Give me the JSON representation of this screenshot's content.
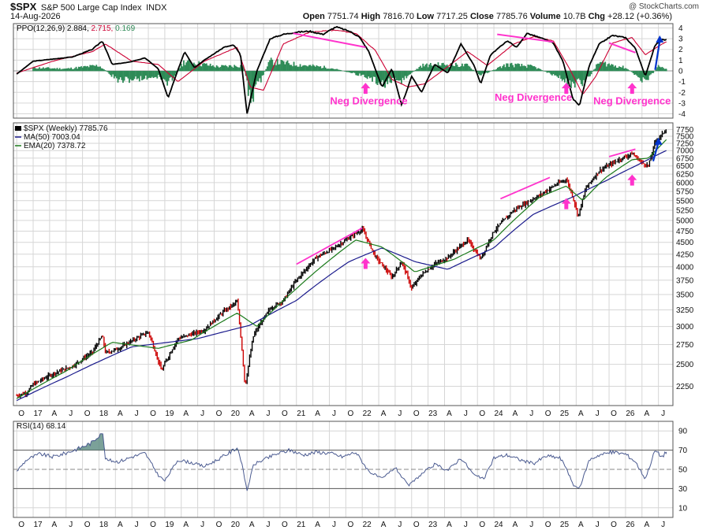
{
  "header": {
    "symbol": "$SPX",
    "description": "S&P 500 Large Cap Index",
    "exchange": "INDX",
    "date": "14-Aug-2026",
    "open_label": "Open",
    "open": "7751.74",
    "high_label": "High",
    "high": "7816.70",
    "low_label": "Low",
    "low": "7717.25",
    "close_label": "Close",
    "close": "7785.76",
    "volume_label": "Volume",
    "volume": "10.7B",
    "chg_label": "Chg",
    "chg": "+28.12 (+0.36%)",
    "brand": "@ StockCharts.com"
  },
  "colors": {
    "ppo_line": "#000000",
    "ppo_signal": "#cc0033",
    "ppo_hist": "#2e8b57",
    "ma50": "#1a1a8c",
    "ema20": "#1a7a1a",
    "price_up": "#000000",
    "price_down": "#cc0000",
    "rsi_line": "#4a5a90",
    "annotation": "#ff33cc",
    "arrow_blue": "#0033cc",
    "grid": "#d6d6d6"
  },
  "chart_data": [
    {
      "type": "line",
      "panel": "ppo",
      "legend": {
        "name": "PPO(12,26,9)",
        "ppo": "2.884",
        "signal": "2.715",
        "hist": "0.169"
      },
      "y_ticks": [
        4,
        3,
        2,
        1,
        0,
        -1,
        -2,
        -3,
        -4
      ],
      "ylim": [
        -4.4,
        4.4
      ],
      "series": [
        {
          "name": "PPO",
          "x": [
            2016.75,
            2017.0,
            2017.3,
            2017.6,
            2017.9,
            2018.05,
            2018.2,
            2018.45,
            2018.7,
            2018.9,
            2019.05,
            2019.3,
            2019.45,
            2019.6,
            2019.9,
            2020.05,
            2020.15,
            2020.25,
            2020.4,
            2020.6,
            2020.8,
            2021.0,
            2021.2,
            2021.4,
            2021.6,
            2021.8,
            2021.95,
            2022.1,
            2022.3,
            2022.45,
            2022.6,
            2022.75,
            2022.9,
            2023.1,
            2023.3,
            2023.5,
            2023.7,
            2023.8,
            2023.95,
            2024.2,
            2024.35,
            2024.5,
            2024.7,
            2024.9,
            2025.05,
            2025.2,
            2025.3,
            2025.45,
            2025.6,
            2025.8,
            2026.0,
            2026.15,
            2026.3,
            2026.45,
            2026.55,
            2026.62
          ],
          "values": [
            -0.3,
            0.9,
            1.1,
            1.3,
            2.0,
            2.8,
            0.6,
            0.8,
            1.2,
            0.2,
            -2.5,
            1.8,
            0.3,
            1.0,
            2.2,
            2.4,
            1.5,
            -4.0,
            0.0,
            3.0,
            3.4,
            3.6,
            3.7,
            3.4,
            4.1,
            3.7,
            3.2,
            1.8,
            -1.5,
            0.2,
            -3.2,
            -0.5,
            -2.0,
            0.6,
            -0.2,
            2.5,
            0.5,
            -1.2,
            1.5,
            2.8,
            2.2,
            3.5,
            3.1,
            2.6,
            0.9,
            -2.6,
            -3.2,
            0.5,
            2.5,
            3.3,
            3.1,
            2.1,
            -0.5,
            2.4,
            2.9,
            2.884
          ]
        },
        {
          "name": "Signal",
          "x": [
            2016.75,
            2017.3,
            2017.9,
            2018.1,
            2018.5,
            2018.9,
            2019.2,
            2019.6,
            2020.1,
            2020.3,
            2020.5,
            2020.8,
            2021.2,
            2021.6,
            2021.9,
            2022.2,
            2022.45,
            2022.7,
            2022.95,
            2023.3,
            2023.6,
            2023.9,
            2024.3,
            2024.6,
            2024.9,
            2025.15,
            2025.35,
            2025.55,
            2025.8,
            2026.1,
            2026.3,
            2026.5,
            2026.62
          ],
          "values": [
            -0.2,
            0.9,
            1.8,
            2.5,
            0.9,
            0.6,
            -1.0,
            0.9,
            2.2,
            -1.5,
            -1.8,
            2.5,
            3.6,
            3.8,
            3.5,
            1.9,
            -0.8,
            -1.5,
            -1.2,
            0.4,
            1.8,
            0.5,
            2.5,
            3.2,
            2.8,
            0.2,
            -2.2,
            -0.5,
            2.6,
            3.1,
            1.5,
            2.3,
            2.715
          ]
        },
        {
          "name": "Histogram",
          "x": [
            2017.0,
            2017.5,
            2018.0,
            2018.3,
            2018.9,
            2019.05,
            2019.3,
            2019.8,
            2020.2,
            2020.3,
            2020.6,
            2021.0,
            2021.5,
            2022.0,
            2022.3,
            2022.6,
            2022.9,
            2023.2,
            2023.6,
            2023.8,
            2024.2,
            2024.6,
            2025.0,
            2025.2,
            2025.4,
            2025.6,
            2026.0,
            2026.3,
            2026.5,
            2026.62
          ],
          "values": [
            0.3,
            0.2,
            0.5,
            -0.9,
            -0.5,
            -1.2,
            0.9,
            0.4,
            0.5,
            -2.7,
            0.9,
            0.6,
            0.3,
            -0.4,
            -1.2,
            -0.9,
            0.5,
            0.6,
            0.5,
            -0.4,
            0.6,
            0.4,
            -0.6,
            -1.3,
            -0.9,
            0.8,
            0.3,
            -1.0,
            0.4,
            0.169
          ]
        }
      ],
      "annotations": [
        {
          "text": "Neg Divergence",
          "x": 2022.1,
          "y": -3.1
        },
        {
          "text": "Neg Divergence",
          "x": 2024.6,
          "y": -2.8
        },
        {
          "text": "Neg Divergence",
          "x": 2026.1,
          "y": -3.1
        }
      ]
    },
    {
      "type": "line",
      "panel": "price",
      "legend": {
        "name": "$SPX (Weekly)",
        "value": "7785.76",
        "ma": "MA(50) 7003.04",
        "ema": "EMA(20) 7378.72"
      },
      "y_ticks": [
        7750,
        7500,
        7250,
        7000,
        6750,
        6500,
        6250,
        6000,
        5750,
        5500,
        5250,
        5000,
        4750,
        4500,
        4250,
        4000,
        3750,
        3500,
        3250,
        3000,
        2750,
        2500,
        2250
      ],
      "y_scale": "log",
      "ylim": [
        2050,
        8000
      ],
      "series": [
        {
          "name": "Price",
          "x": [
            2016.75,
            2016.9,
            2017.0,
            2017.3,
            2017.6,
            2017.9,
            2018.05,
            2018.1,
            2018.3,
            2018.6,
            2018.75,
            2018.95,
            2019.0,
            2019.2,
            2019.4,
            2019.6,
            2019.9,
            2020.1,
            2020.15,
            2020.22,
            2020.35,
            2020.6,
            2020.8,
            2021.0,
            2021.3,
            2021.6,
            2021.9,
            2022.0,
            2022.2,
            2022.45,
            2022.6,
            2022.75,
            2022.9,
            2023.1,
            2023.3,
            2023.6,
            2023.8,
            2024.0,
            2024.3,
            2024.5,
            2024.7,
            2024.95,
            2025.1,
            2025.2,
            2025.28,
            2025.4,
            2025.6,
            2025.9,
            2026.1,
            2026.25,
            2026.35,
            2026.45,
            2026.55,
            2026.62
          ],
          "values": [
            2150,
            2180,
            2270,
            2390,
            2480,
            2650,
            2870,
            2640,
            2700,
            2850,
            2920,
            2420,
            2510,
            2830,
            2890,
            2950,
            3230,
            3380,
            2900,
            2240,
            2880,
            3270,
            3400,
            3750,
            4180,
            4400,
            4700,
            4790,
            4200,
            3800,
            4100,
            3600,
            3850,
            4050,
            4180,
            4550,
            4150,
            4750,
            5250,
            5450,
            5650,
            5950,
            6100,
            5600,
            5100,
            5850,
            6350,
            6700,
            6900,
            6600,
            6500,
            7300,
            7550,
            7785
          ]
        },
        {
          "name": "MA(50)",
          "x": [
            2016.75,
            2017.5,
            2018.5,
            2019.5,
            2020.3,
            2021.0,
            2021.8,
            2022.3,
            2022.8,
            2023.3,
            2024.0,
            2024.6,
            2025.2,
            2025.7,
            2026.2,
            2026.62
          ],
          "values": [
            2100,
            2350,
            2720,
            2830,
            3020,
            3400,
            4100,
            4380,
            4100,
            3950,
            4380,
            5150,
            5600,
            6050,
            6550,
            7003
          ]
        },
        {
          "name": "EMA(20)",
          "x": [
            2016.75,
            2017.5,
            2018.2,
            2018.9,
            2019.4,
            2020.1,
            2020.4,
            2021.0,
            2021.9,
            2022.3,
            2022.8,
            2023.4,
            2024.0,
            2024.7,
            2025.1,
            2025.35,
            2025.7,
            2026.1,
            2026.35,
            2026.62
          ],
          "values": [
            2120,
            2420,
            2780,
            2700,
            2810,
            3200,
            3000,
            3600,
            4550,
            4400,
            3900,
            4150,
            4550,
            5600,
            5900,
            5500,
            6150,
            6700,
            6750,
            7378
          ]
        }
      ],
      "annotations": [
        {
          "type": "pink-line",
          "x1": 2021.0,
          "y1": 4050,
          "x2": 2022.0,
          "y2": 4820
        },
        {
          "type": "pink-line",
          "x1": 2024.1,
          "y1": 5550,
          "x2": 2024.85,
          "y2": 6150
        },
        {
          "type": "pink-line",
          "x1": 2025.75,
          "y1": 6800,
          "x2": 2026.15,
          "y2": 7050
        },
        {
          "type": "pink-arrow",
          "x": 2022.05,
          "y": 4050
        },
        {
          "type": "pink-arrow",
          "x": 2025.1,
          "y": 5400
        },
        {
          "type": "pink-arrow",
          "x": 2026.1,
          "y": 6050
        },
        {
          "type": "blue-arrow",
          "x1": 2026.42,
          "y1": 6650,
          "x2": 2026.5,
          "y2": 7450
        }
      ]
    },
    {
      "type": "line",
      "panel": "rsi",
      "legend": {
        "name": "RSI(14)",
        "value": "68.14"
      },
      "y_ticks": [
        90,
        70,
        50,
        30,
        10
      ],
      "ylim": [
        0,
        100
      ],
      "series": [
        {
          "name": "RSI",
          "x": [
            2016.75,
            2016.9,
            2017.1,
            2017.3,
            2017.5,
            2017.7,
            2017.9,
            2018.05,
            2018.1,
            2018.3,
            2018.5,
            2018.7,
            2018.9,
            2019.0,
            2019.2,
            2019.4,
            2019.6,
            2019.8,
            2020.0,
            2020.1,
            2020.15,
            2020.25,
            2020.35,
            2020.5,
            2020.7,
            2020.9,
            2021.1,
            2021.3,
            2021.5,
            2021.7,
            2021.9,
            2022.1,
            2022.3,
            2022.5,
            2022.7,
            2022.9,
            2023.1,
            2023.3,
            2023.5,
            2023.7,
            2023.85,
            2024.0,
            2024.2,
            2024.4,
            2024.6,
            2024.8,
            2025.0,
            2025.1,
            2025.2,
            2025.3,
            2025.45,
            2025.6,
            2025.8,
            2026.0,
            2026.15,
            2026.3,
            2026.45,
            2026.55,
            2026.62
          ],
          "values": [
            48,
            60,
            66,
            63,
            67,
            72,
            78,
            90,
            60,
            58,
            63,
            67,
            44,
            38,
            60,
            57,
            53,
            60,
            68,
            73,
            62,
            28,
            55,
            60,
            66,
            70,
            65,
            68,
            67,
            63,
            68,
            48,
            40,
            52,
            33,
            45,
            55,
            49,
            62,
            44,
            40,
            62,
            65,
            60,
            56,
            64,
            62,
            52,
            34,
            30,
            60,
            65,
            68,
            66,
            58,
            40,
            70,
            63,
            68.14
          ]
        }
      ]
    }
  ],
  "x_axis_ticks": [
    "O",
    "17",
    "A",
    "J",
    "O",
    "18",
    "A",
    "J",
    "O",
    "19",
    "A",
    "J",
    "O",
    "20",
    "A",
    "J",
    "O",
    "21",
    "A",
    "J",
    "O",
    "22",
    "A",
    "J",
    "O",
    "23",
    "A",
    "J",
    "O",
    "24",
    "A",
    "J",
    "O",
    "25",
    "A",
    "J",
    "O",
    "26",
    "A",
    "J"
  ]
}
